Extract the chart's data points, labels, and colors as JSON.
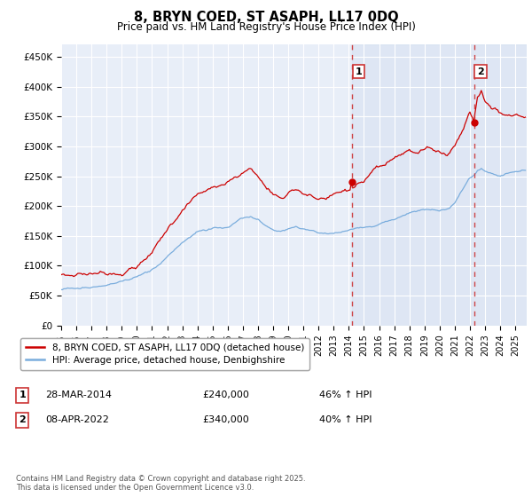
{
  "title": "8, BRYN COED, ST ASAPH, LL17 0DQ",
  "subtitle": "Price paid vs. HM Land Registry's House Price Index (HPI)",
  "background_color": "#ffffff",
  "plot_background": "#e8eef8",
  "grid_color": "#ffffff",
  "red_line_color": "#cc0000",
  "blue_line_color": "#7aaddd",
  "vline_color": "#cc3333",
  "highlight_bg": "#dce8f5",
  "ylim": [
    0,
    470000
  ],
  "yticks": [
    0,
    50000,
    100000,
    150000,
    200000,
    250000,
    300000,
    350000,
    400000,
    450000
  ],
  "ytick_labels": [
    "£0",
    "£50K",
    "£100K",
    "£150K",
    "£200K",
    "£250K",
    "£300K",
    "£350K",
    "£400K",
    "£450K"
  ],
  "sale1_date_num": 2014.24,
  "sale1_price": 240000,
  "sale2_date_num": 2022.27,
  "sale2_price": 340000,
  "legend_entry1": "8, BRYN COED, ST ASAPH, LL17 0DQ (detached house)",
  "legend_entry2": "HPI: Average price, detached house, Denbighshire",
  "table_row1": [
    "1",
    "28-MAR-2014",
    "£240,000",
    "46% ↑ HPI"
  ],
  "table_row2": [
    "2",
    "08-APR-2022",
    "£340,000",
    "40% ↑ HPI"
  ],
  "footnote": "Contains HM Land Registry data © Crown copyright and database right 2025.\nThis data is licensed under the Open Government Licence v3.0.",
  "xmin": 1995.0,
  "xmax": 2025.75
}
